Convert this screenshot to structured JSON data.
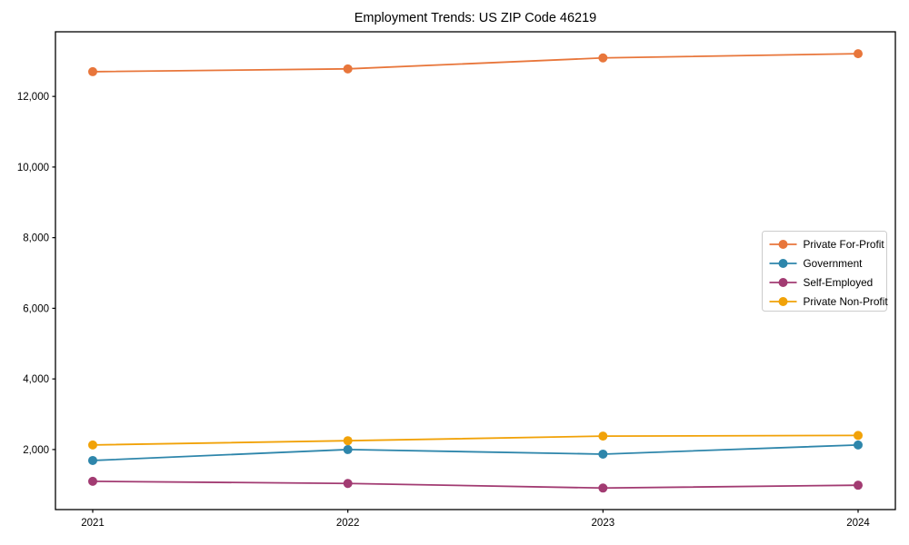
{
  "window": {
    "background": "#ffffff"
  },
  "chart_data": {
    "type": "line",
    "title": "Employment Trends: US ZIP Code 46219",
    "categories": [
      "2021",
      "2022",
      "2023",
      "2024"
    ],
    "series": [
      {
        "name": "Private For-Profit",
        "color": "#E8763B",
        "values": [
          12700,
          12780,
          13090,
          13210
        ]
      },
      {
        "name": "Government",
        "color": "#2E86AB",
        "values": [
          1690,
          2000,
          1870,
          2130
        ]
      },
      {
        "name": "Self-Employed",
        "color": "#A23B72",
        "values": [
          1100,
          1040,
          910,
          990
        ]
      },
      {
        "name": "Private Non-Profit",
        "color": "#F1A208",
        "values": [
          2130,
          2250,
          2380,
          2400
        ]
      }
    ],
    "xlabel": "",
    "ylabel": "",
    "ylim": [
      300,
      13830
    ],
    "yticks": [
      2000,
      4000,
      6000,
      8000,
      10000,
      12000
    ],
    "ytick_labels": [
      "2,000",
      "4,000",
      "6,000",
      "8,000",
      "10,000",
      "12,000"
    ],
    "grid": false,
    "marker": "circle",
    "legend_position": "center-right",
    "axis_color": "#000000",
    "text_color": "#000000",
    "legend_border_color": "#cccccc",
    "legend_background": "#ffffff"
  }
}
